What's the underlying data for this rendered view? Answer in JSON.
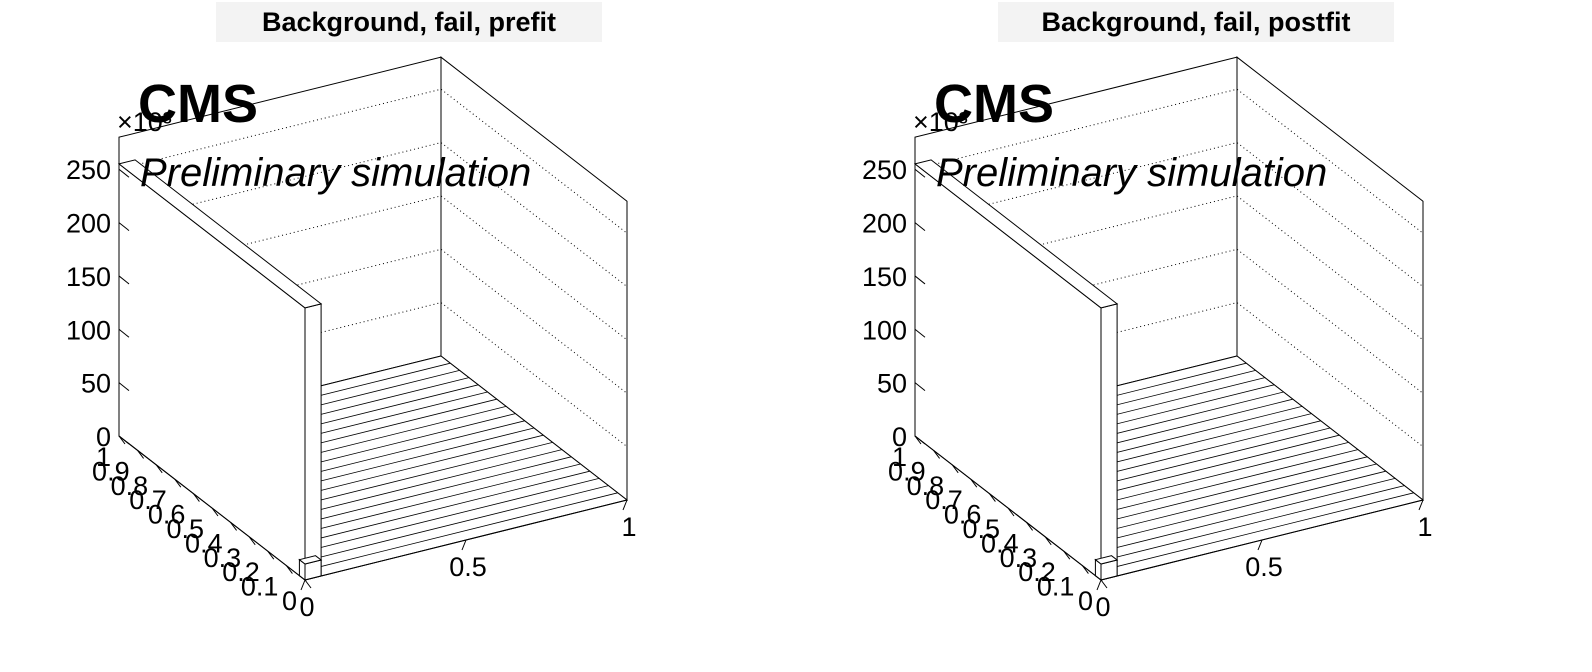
{
  "chart_data": [
    {
      "type": "lego3d",
      "title": "Background, fail, prefit",
      "labels": {
        "experiment": "CMS",
        "status": "Preliminary simulation"
      },
      "z_multiplier": "×10³",
      "z_ticks": [
        "0",
        "50",
        "100",
        "150",
        "200",
        "250"
      ],
      "z_range": [
        0,
        280
      ],
      "y_ticks": [
        "0",
        "0.1",
        "0.2",
        "0.3",
        "0.4",
        "0.5",
        "0.6",
        "0.7",
        "0.8",
        "0.9",
        "1"
      ],
      "x_ticks": [
        "0",
        "0.5",
        "1"
      ],
      "x_range": [
        0,
        1
      ],
      "y_range": [
        0,
        1
      ],
      "grid": true,
      "bins": [
        {
          "x": [
            0,
            0.05
          ],
          "y": [
            0,
            1
          ],
          "z": 255
        },
        {
          "x": [
            0,
            0.05
          ],
          "y": [
            0,
            0.03
          ],
          "z": 15
        }
      ]
    },
    {
      "type": "lego3d",
      "title": "Background, fail, postfit",
      "labels": {
        "experiment": "CMS",
        "status": "Preliminary simulation"
      },
      "z_multiplier": "×10³",
      "z_ticks": [
        "0",
        "50",
        "100",
        "150",
        "200",
        "250"
      ],
      "z_range": [
        0,
        280
      ],
      "y_ticks": [
        "0",
        "0.1",
        "0.2",
        "0.3",
        "0.4",
        "0.5",
        "0.6",
        "0.7",
        "0.8",
        "0.9",
        "1"
      ],
      "x_ticks": [
        "0",
        "0.5",
        "1"
      ],
      "x_range": [
        0,
        1
      ],
      "y_range": [
        0,
        1
      ],
      "grid": true,
      "bins": [
        {
          "x": [
            0,
            0.05
          ],
          "y": [
            0,
            1
          ],
          "z": 255
        },
        {
          "x": [
            0,
            0.05
          ],
          "y": [
            0,
            0.03
          ],
          "z": 15
        }
      ]
    }
  ]
}
